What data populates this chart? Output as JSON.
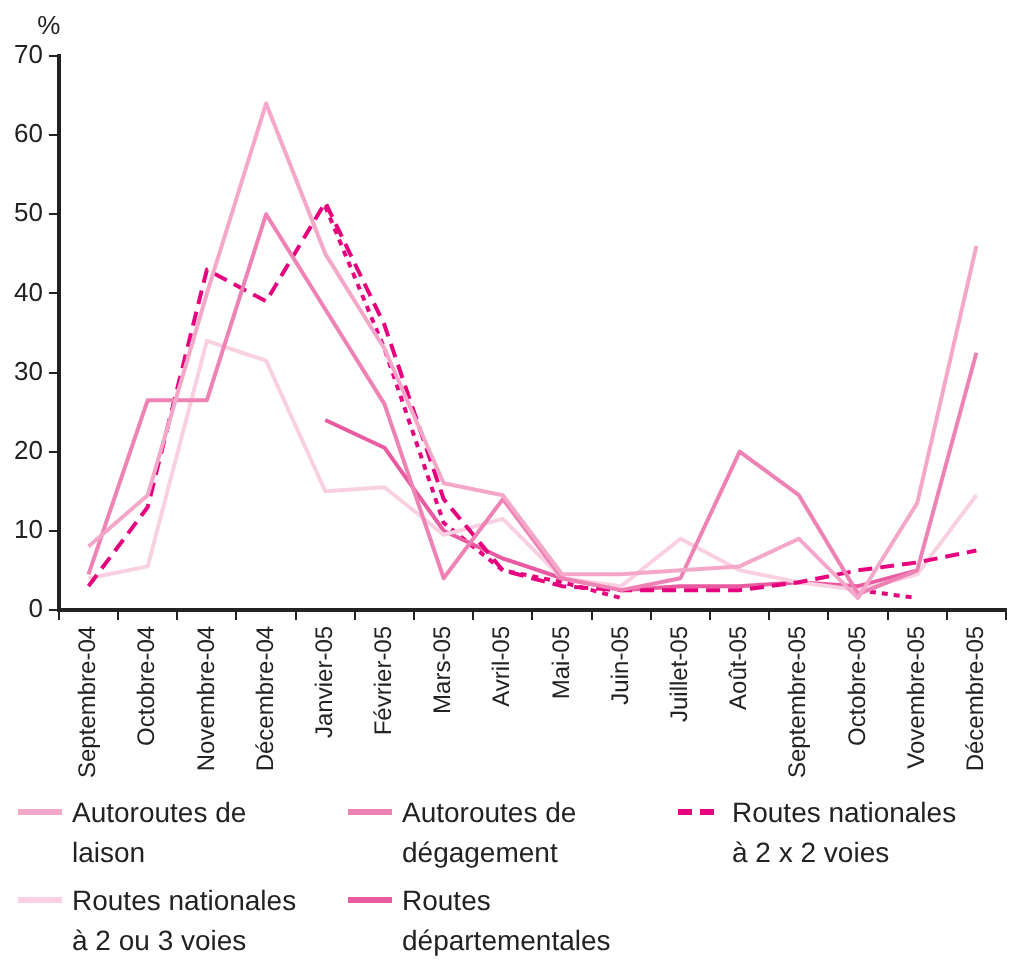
{
  "chart_data": {
    "type": "line",
    "ylabel": "%",
    "categories": [
      "Septembre-04",
      "Octobre-04",
      "Novembre-04",
      "Décembre-04",
      "Janvier-05",
      "Février-05",
      "Mars-05",
      "Avril-05",
      "Mai-05",
      "Juin-05",
      "Juillet-05",
      "Août-05",
      "Septembre-05",
      "Octobre-05",
      "Vovembre-05",
      "Décembre-05"
    ],
    "series": [
      {
        "name": "Autoroutes de laison",
        "color": "#f4a7c9",
        "values": [
          8,
          14.5,
          40,
          64,
          45,
          33,
          16,
          14.5,
          4.5,
          4.5,
          5,
          5.5,
          9,
          1.5,
          13.5,
          46
        ]
      },
      {
        "name": "Autoroutes de dégagement",
        "color": "#ee82b4",
        "values": [
          4.5,
          26.5,
          26.5,
          50,
          38,
          26,
          4,
          14,
          4,
          2.5,
          4,
          20,
          14.5,
          2,
          5,
          32.5
        ]
      },
      {
        "name": "Routes nationales à 2 x 2 voies",
        "color": "#e6007e",
        "line_style": "dashed",
        "values": [
          3,
          13,
          43,
          39,
          51.5,
          36,
          14,
          5,
          3,
          2.5,
          2.5,
          2.5,
          3.5,
          5,
          6,
          7.5
        ]
      },
      {
        "name": "Routes nationales à 2 ou 3 voies",
        "color": "#f9d0e2",
        "values": [
          4,
          5.5,
          34,
          31.5,
          15,
          15.5,
          9.5,
          11.5,
          4,
          3,
          9,
          5,
          3.5,
          2.5,
          4.5,
          14.5
        ]
      },
      {
        "name": "Routes départementales",
        "color": "#e95aa0",
        "values": [
          null,
          null,
          null,
          null,
          24,
          20.5,
          10,
          6.5,
          4,
          2.5,
          3,
          3,
          3.5,
          3,
          5,
          null
        ]
      },
      {
        "color": "#e6007e",
        "line_style": "dotted",
        "values": [
          null,
          null,
          null,
          null,
          51,
          33,
          11,
          5,
          3.5,
          1.5,
          null,
          null,
          null,
          2.5,
          1.5,
          null
        ]
      }
    ],
    "ylim": [
      0,
      70
    ],
    "yticks": [
      0,
      10,
      20,
      30,
      40,
      50,
      60,
      70
    ],
    "grid": false,
    "legend": "bottom",
    "marker": "none"
  }
}
